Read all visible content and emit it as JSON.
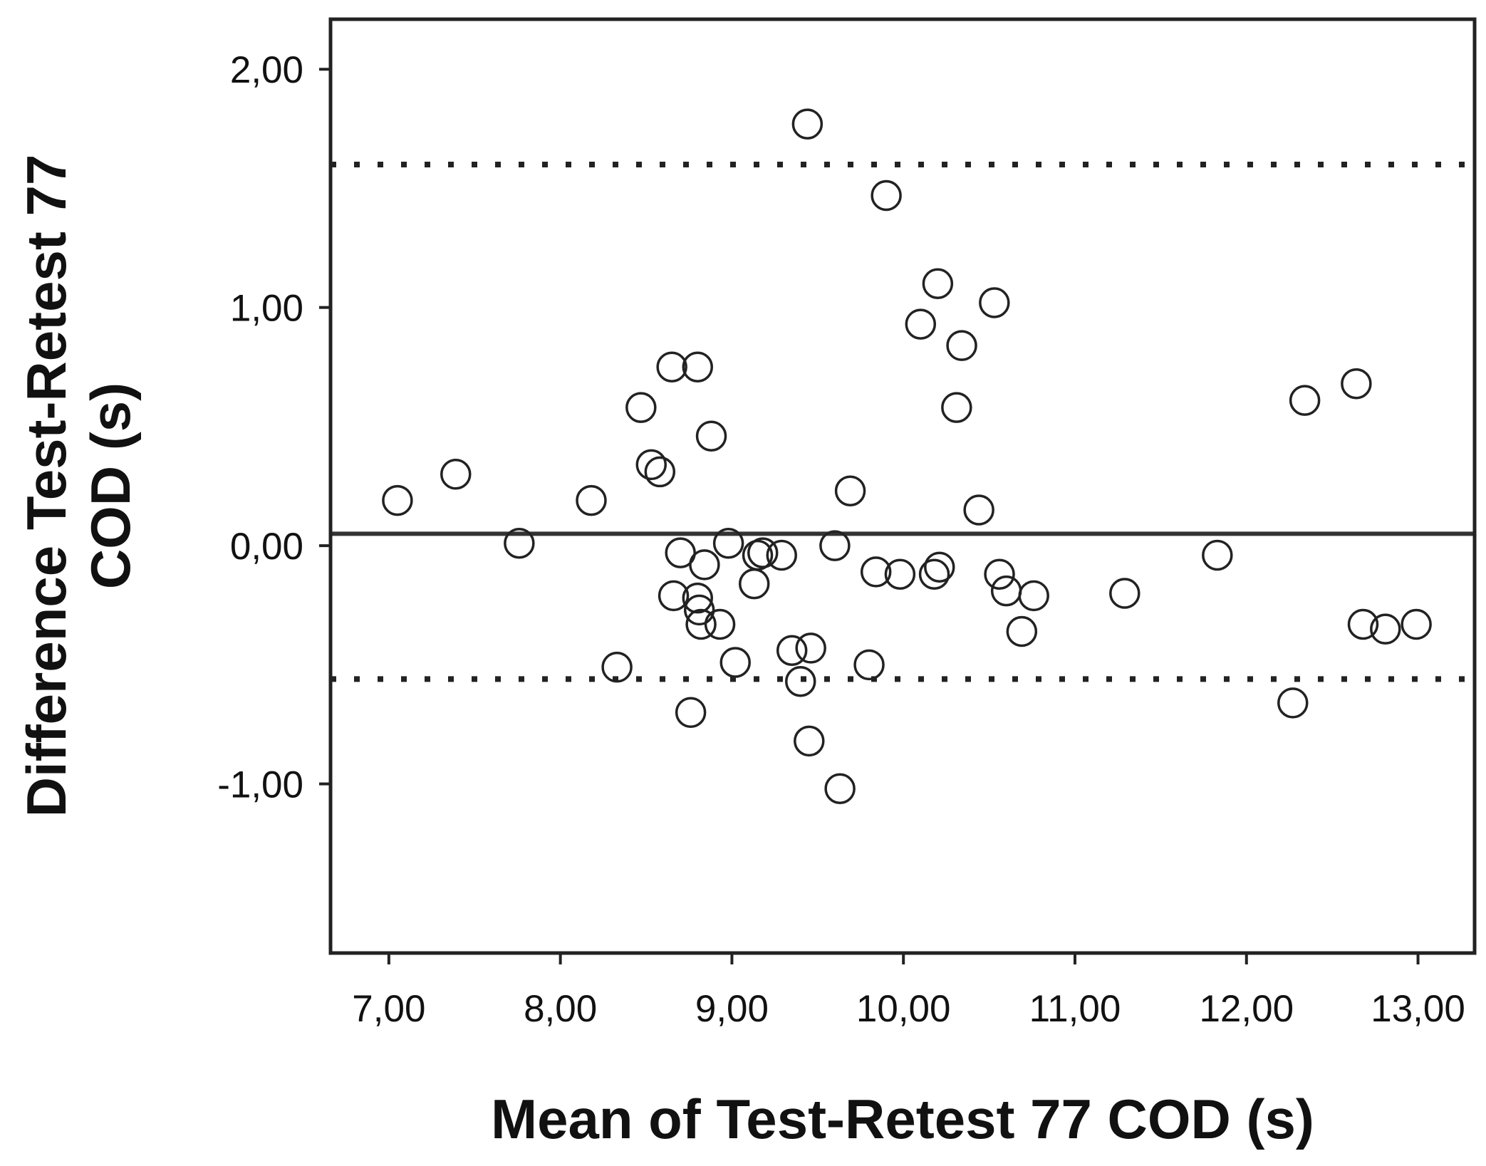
{
  "chart_data": {
    "type": "scatter",
    "title": "",
    "xlabel": "Mean of Test-Retest 77 COD (s)",
    "ylabel_lines": [
      "Difference Test-Retest 77",
      "COD (s)"
    ],
    "xlim": [
      6.66,
      13.33
    ],
    "ylim": [
      -1.71,
      2.21
    ],
    "xticks": [
      7,
      8,
      9,
      10,
      11,
      12,
      13
    ],
    "xtick_labels": [
      "7,00",
      "8,00",
      "9,00",
      "10,00",
      "11,00",
      "12,00",
      "13,00"
    ],
    "yticks": [
      2,
      1,
      0,
      -1
    ],
    "ytick_labels": [
      "2,00",
      "1,00",
      "0,00",
      "-1,00"
    ],
    "reference_lines": {
      "mean_difference": 0.05,
      "upper_limit_of_agreement": 1.6,
      "lower_limit_of_agreement": -0.56
    },
    "marker": "open-circle",
    "points": [
      {
        "x": 7.05,
        "y": 0.19
      },
      {
        "x": 7.39,
        "y": 0.3
      },
      {
        "x": 7.76,
        "y": 0.01
      },
      {
        "x": 8.18,
        "y": 0.19
      },
      {
        "x": 8.33,
        "y": -0.51
      },
      {
        "x": 8.47,
        "y": 0.58
      },
      {
        "x": 8.53,
        "y": 0.34
      },
      {
        "x": 8.58,
        "y": 0.31
      },
      {
        "x": 8.65,
        "y": 0.75
      },
      {
        "x": 8.66,
        "y": -0.21
      },
      {
        "x": 8.7,
        "y": -0.03
      },
      {
        "x": 8.76,
        "y": -0.7
      },
      {
        "x": 8.8,
        "y": 0.75
      },
      {
        "x": 8.8,
        "y": -0.22
      },
      {
        "x": 8.81,
        "y": -0.27
      },
      {
        "x": 8.82,
        "y": -0.33
      },
      {
        "x": 8.84,
        "y": -0.08
      },
      {
        "x": 8.88,
        "y": 0.46
      },
      {
        "x": 8.93,
        "y": -0.33
      },
      {
        "x": 8.98,
        "y": 0.01
      },
      {
        "x": 9.02,
        "y": -0.49
      },
      {
        "x": 9.13,
        "y": -0.16
      },
      {
        "x": 9.15,
        "y": -0.04
      },
      {
        "x": 9.18,
        "y": -0.03
      },
      {
        "x": 9.29,
        "y": -0.04
      },
      {
        "x": 9.35,
        "y": -0.44
      },
      {
        "x": 9.4,
        "y": -0.57
      },
      {
        "x": 9.44,
        "y": 1.77
      },
      {
        "x": 9.45,
        "y": -0.82
      },
      {
        "x": 9.46,
        "y": -0.43
      },
      {
        "x": 9.6,
        "y": 0.0
      },
      {
        "x": 9.63,
        "y": -1.02
      },
      {
        "x": 9.69,
        "y": 0.23
      },
      {
        "x": 9.8,
        "y": -0.5
      },
      {
        "x": 9.84,
        "y": -0.11
      },
      {
        "x": 9.9,
        "y": 1.47
      },
      {
        "x": 9.98,
        "y": -0.12
      },
      {
        "x": 10.1,
        "y": 0.93
      },
      {
        "x": 10.18,
        "y": -0.12
      },
      {
        "x": 10.2,
        "y": 1.1
      },
      {
        "x": 10.21,
        "y": -0.09
      },
      {
        "x": 10.31,
        "y": 0.58
      },
      {
        "x": 10.34,
        "y": 0.84
      },
      {
        "x": 10.44,
        "y": 0.15
      },
      {
        "x": 10.53,
        "y": 1.02
      },
      {
        "x": 10.56,
        "y": -0.12
      },
      {
        "x": 10.6,
        "y": -0.19
      },
      {
        "x": 10.69,
        "y": -0.36
      },
      {
        "x": 10.76,
        "y": -0.21
      },
      {
        "x": 11.29,
        "y": -0.2
      },
      {
        "x": 11.83,
        "y": -0.04
      },
      {
        "x": 12.27,
        "y": -0.66
      },
      {
        "x": 12.34,
        "y": 0.61
      },
      {
        "x": 12.64,
        "y": 0.68
      },
      {
        "x": 12.68,
        "y": -0.33
      },
      {
        "x": 12.81,
        "y": -0.35
      },
      {
        "x": 12.99,
        "y": -0.33
      }
    ]
  }
}
